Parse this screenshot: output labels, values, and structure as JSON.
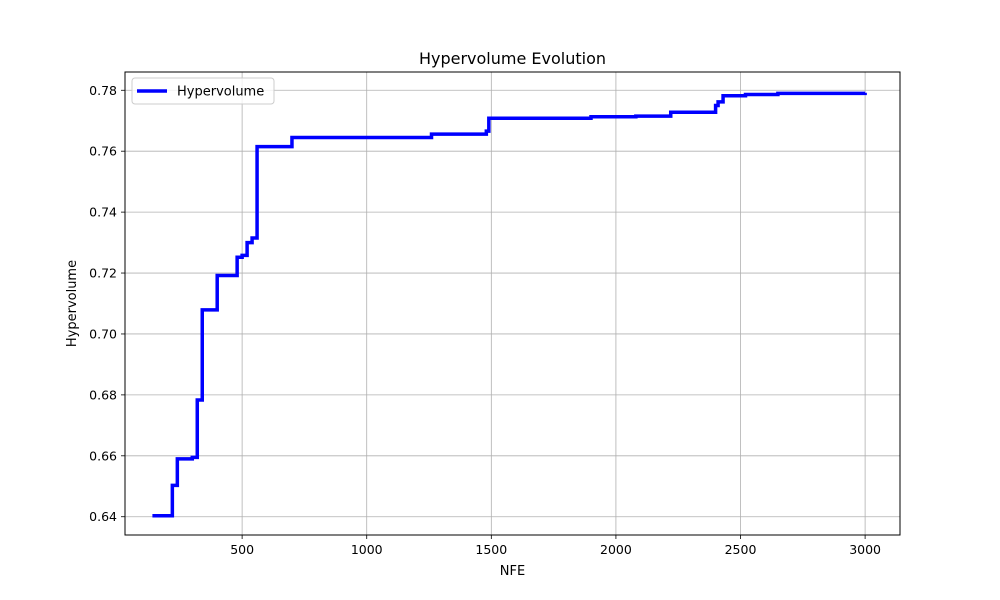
{
  "chart_data": {
    "type": "line",
    "title": "Hypervolume Evolution",
    "xlabel": "NFE",
    "ylabel": "Hypervolume",
    "xlim": [
      30,
      3140
    ],
    "ylim": [
      0.634,
      0.786
    ],
    "xticks": [
      500,
      1000,
      1500,
      2000,
      2500,
      3000
    ],
    "xtick_labels": [
      "500",
      "1000",
      "1500",
      "2000",
      "2500",
      "3000"
    ],
    "yticks": [
      0.64,
      0.66,
      0.68,
      0.7,
      0.72,
      0.74,
      0.76,
      0.78
    ],
    "ytick_labels": [
      "0.64",
      "0.66",
      "0.68",
      "0.70",
      "0.72",
      "0.74",
      "0.76",
      "0.78"
    ],
    "grid": true,
    "legend_position": "upper-left",
    "series": [
      {
        "name": "Hypervolume",
        "color": "#0000ff",
        "step": true,
        "x": [
          140,
          220,
          240,
          300,
          320,
          340,
          360,
          380,
          400,
          420,
          440,
          460,
          480,
          500,
          520,
          540,
          560,
          700,
          1260,
          1480,
          1490,
          1900,
          2080,
          2220,
          2400,
          2410,
          2430,
          2520,
          2650,
          3000
        ],
        "y": [
          0.6403,
          0.6503,
          0.659,
          0.6595,
          0.6783,
          0.7079,
          0.7079,
          0.7079,
          0.7192,
          0.7192,
          0.7192,
          0.7192,
          0.7252,
          0.7258,
          0.73,
          0.7315,
          0.7615,
          0.7645,
          0.7656,
          0.7666,
          0.7708,
          0.7713,
          0.7715,
          0.7728,
          0.775,
          0.7762,
          0.7782,
          0.7786,
          0.779,
          0.7792
        ]
      }
    ]
  }
}
